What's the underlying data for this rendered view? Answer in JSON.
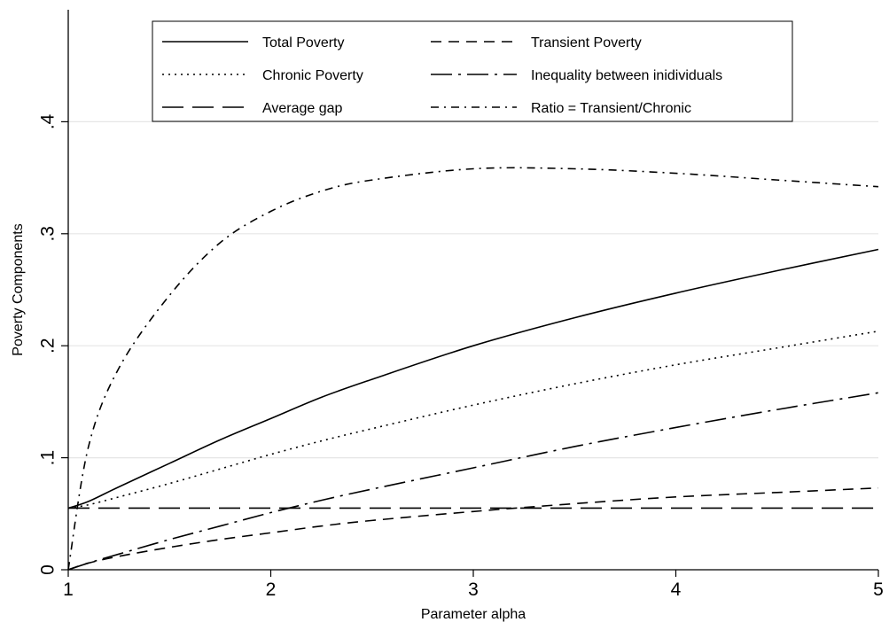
{
  "chart_data": {
    "type": "line",
    "title": "",
    "xlabel": "Parameter alpha",
    "ylabel": "Poverty Components",
    "xlim": [
      1,
      5
    ],
    "ylim": [
      0,
      0.5
    ],
    "x_ticks": [
      1,
      2,
      3,
      4,
      5
    ],
    "x_tick_labels": [
      "1",
      "2",
      "3",
      "4",
      "5"
    ],
    "y_ticks": [
      0,
      0.1,
      0.2,
      0.3,
      0.4
    ],
    "y_tick_labels": [
      "0",
      ".1",
      ".2",
      ".3",
      ".4"
    ],
    "grid": "horizontal",
    "legend_position": "top",
    "x": [
      1,
      1.1,
      1.25,
      1.5,
      1.75,
      2,
      2.25,
      2.5,
      3,
      3.5,
      4,
      4.5,
      5
    ],
    "series": [
      {
        "name": "Total Poverty",
        "style": "solid",
        "values": [
          0.055,
          0.061,
          0.074,
          0.095,
          0.116,
          0.135,
          0.154,
          0.17,
          0.2,
          0.225,
          0.247,
          0.267,
          0.286
        ]
      },
      {
        "name": "Transient Poverty",
        "style": "dash",
        "values": [
          0,
          0.006,
          0.012,
          0.02,
          0.027,
          0.033,
          0.039,
          0.044,
          0.052,
          0.059,
          0.065,
          0.069,
          0.073
        ]
      },
      {
        "name": "Chronic Poverty",
        "style": "dot",
        "values": [
          0.055,
          0.058,
          0.065,
          0.077,
          0.09,
          0.103,
          0.115,
          0.126,
          0.147,
          0.166,
          0.183,
          0.198,
          0.213
        ]
      },
      {
        "name": "Inequality between inidividuals",
        "style": "longdash-dot",
        "values": [
          0,
          0.006,
          0.014,
          0.027,
          0.039,
          0.051,
          0.062,
          0.072,
          0.091,
          0.11,
          0.127,
          0.143,
          0.158
        ]
      },
      {
        "name": "Average gap",
        "style": "longdash",
        "values": [
          0.055,
          0.055,
          0.055,
          0.055,
          0.055,
          0.055,
          0.055,
          0.055,
          0.055,
          0.055,
          0.055,
          0.055,
          0.055
        ]
      },
      {
        "name": "Ratio = Transient/Chronic",
        "style": "dash-dot",
        "values": [
          0,
          0.11,
          0.18,
          0.245,
          0.292,
          0.32,
          0.338,
          0.348,
          0.358,
          0.358,
          0.354,
          0.348,
          0.342
        ]
      }
    ]
  }
}
